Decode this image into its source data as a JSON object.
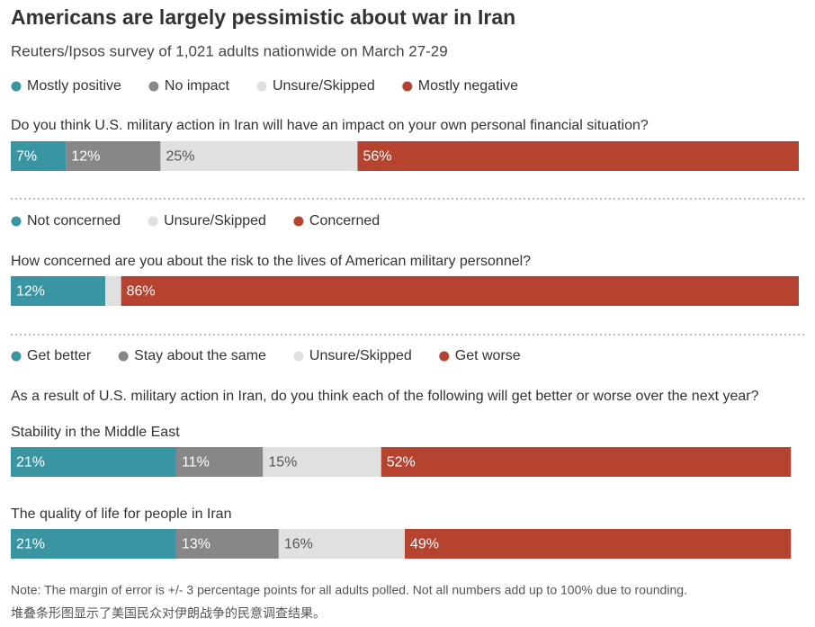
{
  "title": "Americans are largely pessimistic about war in Iran",
  "subtitle": "Reuters/Ipsos survey of 1,021 adults nationwide on March 27-29",
  "note": "Note:  The margin of error is +/- 3 percentage points for all adults polled. Not all numbers add up to 100% due to rounding.",
  "caption": "堆叠条形图显示了美国民众对伊朗战争的民意调查结果。",
  "chart_data": [
    {
      "type": "stacked_bar",
      "title": "Do you think U.S. military action in Iran will have an impact on your own personal financial situation?",
      "categories": [
        null
      ],
      "xlim": [
        0,
        100
      ],
      "series": [
        {
          "name": "Mostly positive",
          "color": "#3a95a3",
          "values": [
            7
          ],
          "value_labels": [
            "7%"
          ]
        },
        {
          "name": "No impact",
          "color": "#878787",
          "values": [
            12
          ],
          "value_labels": [
            "12%"
          ]
        },
        {
          "name": "Unsure/Skipped",
          "color": "#e0e0e0",
          "values": [
            25
          ],
          "value_labels": [
            "25%"
          ]
        },
        {
          "name": "Mostly negative",
          "color": "#b5432f",
          "values": [
            56
          ],
          "value_labels": [
            "56%"
          ]
        }
      ]
    },
    {
      "type": "stacked_bar",
      "title": "How concerned are you about the risk to the lives of American military personnel?",
      "categories": [
        null
      ],
      "xlim": [
        0,
        100
      ],
      "series": [
        {
          "name": "Not concerned",
          "color": "#3a95a3",
          "values": [
            12
          ],
          "value_labels": [
            "12%"
          ]
        },
        {
          "name": "Unsure/Skipped",
          "color": "#e0e0e0",
          "values": [
            2
          ],
          "value_labels": [
            null
          ]
        },
        {
          "name": "Concerned",
          "color": "#b5432f",
          "values": [
            86
          ],
          "value_labels": [
            "86%"
          ]
        }
      ]
    },
    {
      "type": "stacked_bar",
      "title": "As a result of U.S. military action in Iran, do you think each of the following will get better or worse over the next year?",
      "categories": [
        "Stability in the Middle East",
        "The quality of life for people in Iran"
      ],
      "xlim": [
        0,
        100
      ],
      "series": [
        {
          "name": "Get better",
          "color": "#3a95a3",
          "values": [
            21,
            21
          ],
          "value_labels": [
            "21%",
            "21%"
          ]
        },
        {
          "name": "Stay about the same",
          "color": "#878787",
          "values": [
            11,
            13
          ],
          "value_labels": [
            "11%",
            "13%"
          ]
        },
        {
          "name": "Unsure/Skipped",
          "color": "#e0e0e0",
          "values": [
            15,
            16
          ],
          "value_labels": [
            "15%",
            "16%"
          ]
        },
        {
          "name": "Get worse",
          "color": "#b5432f",
          "values": [
            52,
            49
          ],
          "value_labels": [
            "52%",
            "49%"
          ]
        }
      ]
    }
  ]
}
